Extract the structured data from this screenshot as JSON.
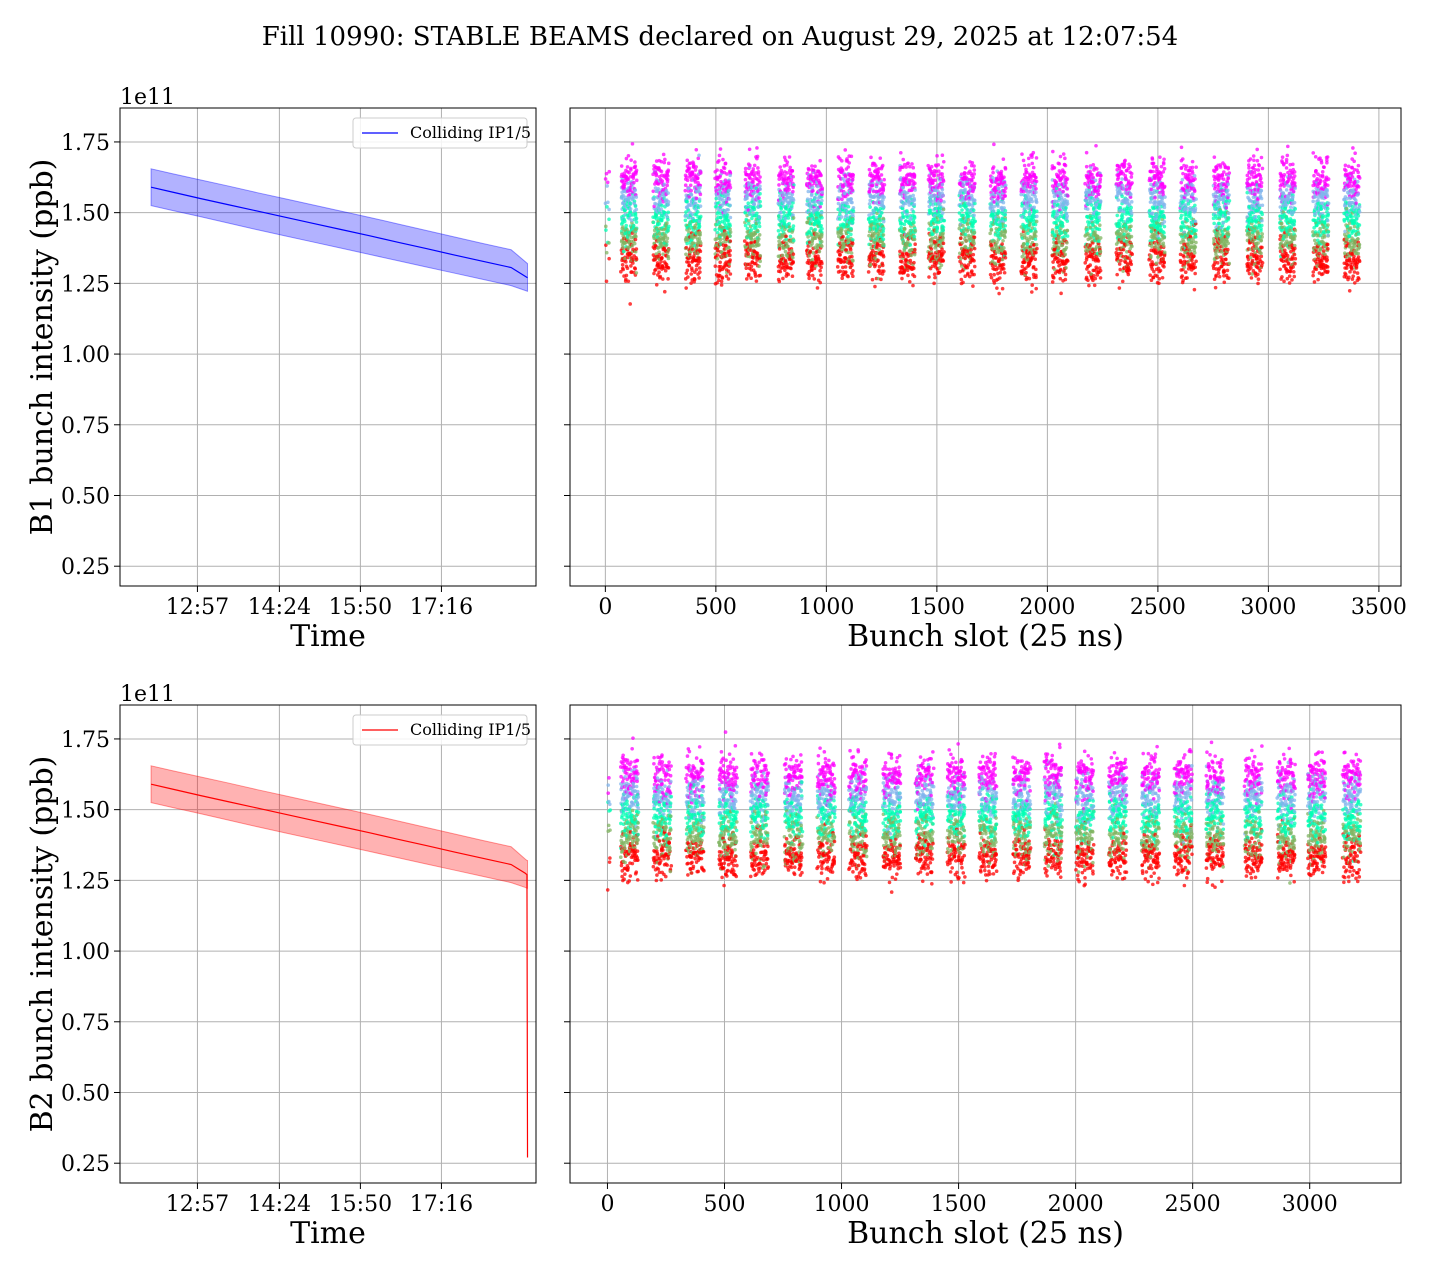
{
  "figure": {
    "suptitle": "Fill 10990: STABLE BEAMS declared on August 29, 2025 at 12:07:54"
  },
  "chart_data": [
    {
      "id": "b1-time",
      "type": "line",
      "xlabel": "Time",
      "ylabel": "B1 bunch intensity (ppb)",
      "offset_text": "1e11",
      "x_tick_labels": [
        "12:57",
        "14:24",
        "15:50",
        "17:16"
      ],
      "x_ticks_hours": [
        12.95,
        14.4,
        15.833,
        17.267
      ],
      "xlim_hours": [
        11.58,
        18.94
      ],
      "yticks": [
        0.25,
        0.5,
        0.75,
        1.0,
        1.25,
        1.5,
        1.75
      ],
      "ytick_labels": [
        "0.25",
        "0.50",
        "0.75",
        "1.00",
        "1.25",
        "1.50",
        "1.75"
      ],
      "ylim": [
        0.18,
        1.87
      ],
      "grid": true,
      "legend": {
        "placement": "top-right",
        "entries": [
          "Colliding IP1/5"
        ]
      },
      "color": "#0000ff",
      "band_color": "#0000ff",
      "series": [
        {
          "name": "Colliding IP1/5",
          "x_hours": [
            12.13,
            12.5,
            13.0,
            13.5,
            14.0,
            14.5,
            15.0,
            15.5,
            16.0,
            16.5,
            17.0,
            17.5,
            18.0,
            18.5,
            18.79
          ],
          "mean": [
            1.59,
            1.573,
            1.55,
            1.528,
            1.506,
            1.484,
            1.462,
            1.44,
            1.418,
            1.395,
            1.373,
            1.35,
            1.328,
            1.306,
            1.27
          ],
          "upper": [
            1.655,
            1.638,
            1.616,
            1.594,
            1.571,
            1.549,
            1.527,
            1.505,
            1.483,
            1.46,
            1.437,
            1.414,
            1.391,
            1.369,
            1.32
          ],
          "lower": [
            1.525,
            1.508,
            1.486,
            1.463,
            1.44,
            1.418,
            1.396,
            1.374,
            1.352,
            1.33,
            1.308,
            1.286,
            1.264,
            1.242,
            1.222
          ]
        }
      ]
    },
    {
      "id": "b1-slot",
      "type": "scatter",
      "xlabel": "Bunch slot (25 ns)",
      "xticks": [
        0,
        500,
        1000,
        1500,
        2000,
        2500,
        3000,
        3500
      ],
      "xtick_labels": [
        "0",
        "500",
        "1000",
        "1500",
        "2000",
        "2500",
        "3000",
        "3500"
      ],
      "xlim": [
        -160,
        3600
      ],
      "ylim": [
        0.18,
        1.87
      ],
      "yticks": [
        0.25,
        0.5,
        0.75,
        1.0,
        1.25,
        1.5,
        1.75
      ],
      "grid": true,
      "colormap": "rainbow",
      "train_starts": [
        70,
        215,
        360,
        495,
        630,
        780,
        910,
        1050,
        1190,
        1330,
        1460,
        1600,
        1740,
        1880,
        2020,
        2170,
        2310,
        2460,
        2600,
        2750,
        2900,
        3050,
        3200,
        3340
      ],
      "train_length": 70,
      "first_slots": [
        0,
        5,
        10,
        15
      ],
      "mean_range": [
        1.33,
        1.62
      ],
      "spread": 0.12,
      "point_count": 2400
    },
    {
      "id": "b2-time",
      "type": "line",
      "xlabel": "Time",
      "ylabel": "B2 bunch intensity (ppb)",
      "offset_text": "1e11",
      "x_tick_labels": [
        "12:57",
        "14:24",
        "15:50",
        "17:16"
      ],
      "x_ticks_hours": [
        12.95,
        14.4,
        15.833,
        17.267
      ],
      "xlim_hours": [
        11.58,
        18.94
      ],
      "yticks": [
        0.25,
        0.5,
        0.75,
        1.0,
        1.25,
        1.5,
        1.75
      ],
      "ytick_labels": [
        "0.25",
        "0.50",
        "0.75",
        "1.00",
        "1.25",
        "1.50",
        "1.75"
      ],
      "ylim": [
        0.18,
        1.87
      ],
      "grid": true,
      "legend": {
        "placement": "top-right",
        "entries": [
          "Colliding IP1/5"
        ]
      },
      "color": "#ff0000",
      "band_color": "#ff0000",
      "series": [
        {
          "name": "Colliding IP1/5",
          "x_hours": [
            12.13,
            12.5,
            13.0,
            13.5,
            14.0,
            14.5,
            15.0,
            15.5,
            16.0,
            16.5,
            17.0,
            17.5,
            18.0,
            18.5,
            18.75,
            18.78,
            18.79
          ],
          "mean": [
            1.59,
            1.573,
            1.55,
            1.528,
            1.506,
            1.484,
            1.462,
            1.44,
            1.418,
            1.395,
            1.373,
            1.35,
            1.328,
            1.306,
            1.275,
            1.27,
            0.27
          ],
          "upper": [
            1.655,
            1.638,
            1.616,
            1.594,
            1.571,
            1.549,
            1.527,
            1.505,
            1.483,
            1.46,
            1.437,
            1.414,
            1.391,
            1.369,
            1.325,
            1.32,
            1.32
          ],
          "lower": [
            1.525,
            1.508,
            1.486,
            1.463,
            1.44,
            1.418,
            1.396,
            1.374,
            1.352,
            1.33,
            1.308,
            1.286,
            1.264,
            1.242,
            1.225,
            1.222,
            1.222
          ]
        }
      ]
    },
    {
      "id": "b2-slot",
      "type": "scatter",
      "xlabel": "Bunch slot (25 ns)",
      "xticks": [
        0,
        500,
        1000,
        1500,
        2000,
        2500,
        3000
      ],
      "xtick_labels": [
        "0",
        "500",
        "1000",
        "1500",
        "2000",
        "2500",
        "3000"
      ],
      "xlim": [
        -160,
        3390
      ],
      "ylim": [
        0.18,
        1.87
      ],
      "yticks": [
        0.25,
        0.5,
        0.75,
        1.0,
        1.25,
        1.5,
        1.75
      ],
      "grid": true,
      "colormap": "rainbow",
      "train_starts": [
        55,
        195,
        335,
        475,
        610,
        755,
        895,
        1030,
        1175,
        1315,
        1450,
        1585,
        1730,
        1865,
        2000,
        2140,
        2280,
        2420,
        2555,
        2720,
        2860,
        2990,
        3140
      ],
      "train_length": 75,
      "first_slots": [
        0,
        5,
        10
      ],
      "mean_range": [
        1.33,
        1.62
      ],
      "spread": 0.12,
      "point_count": 2400
    }
  ]
}
